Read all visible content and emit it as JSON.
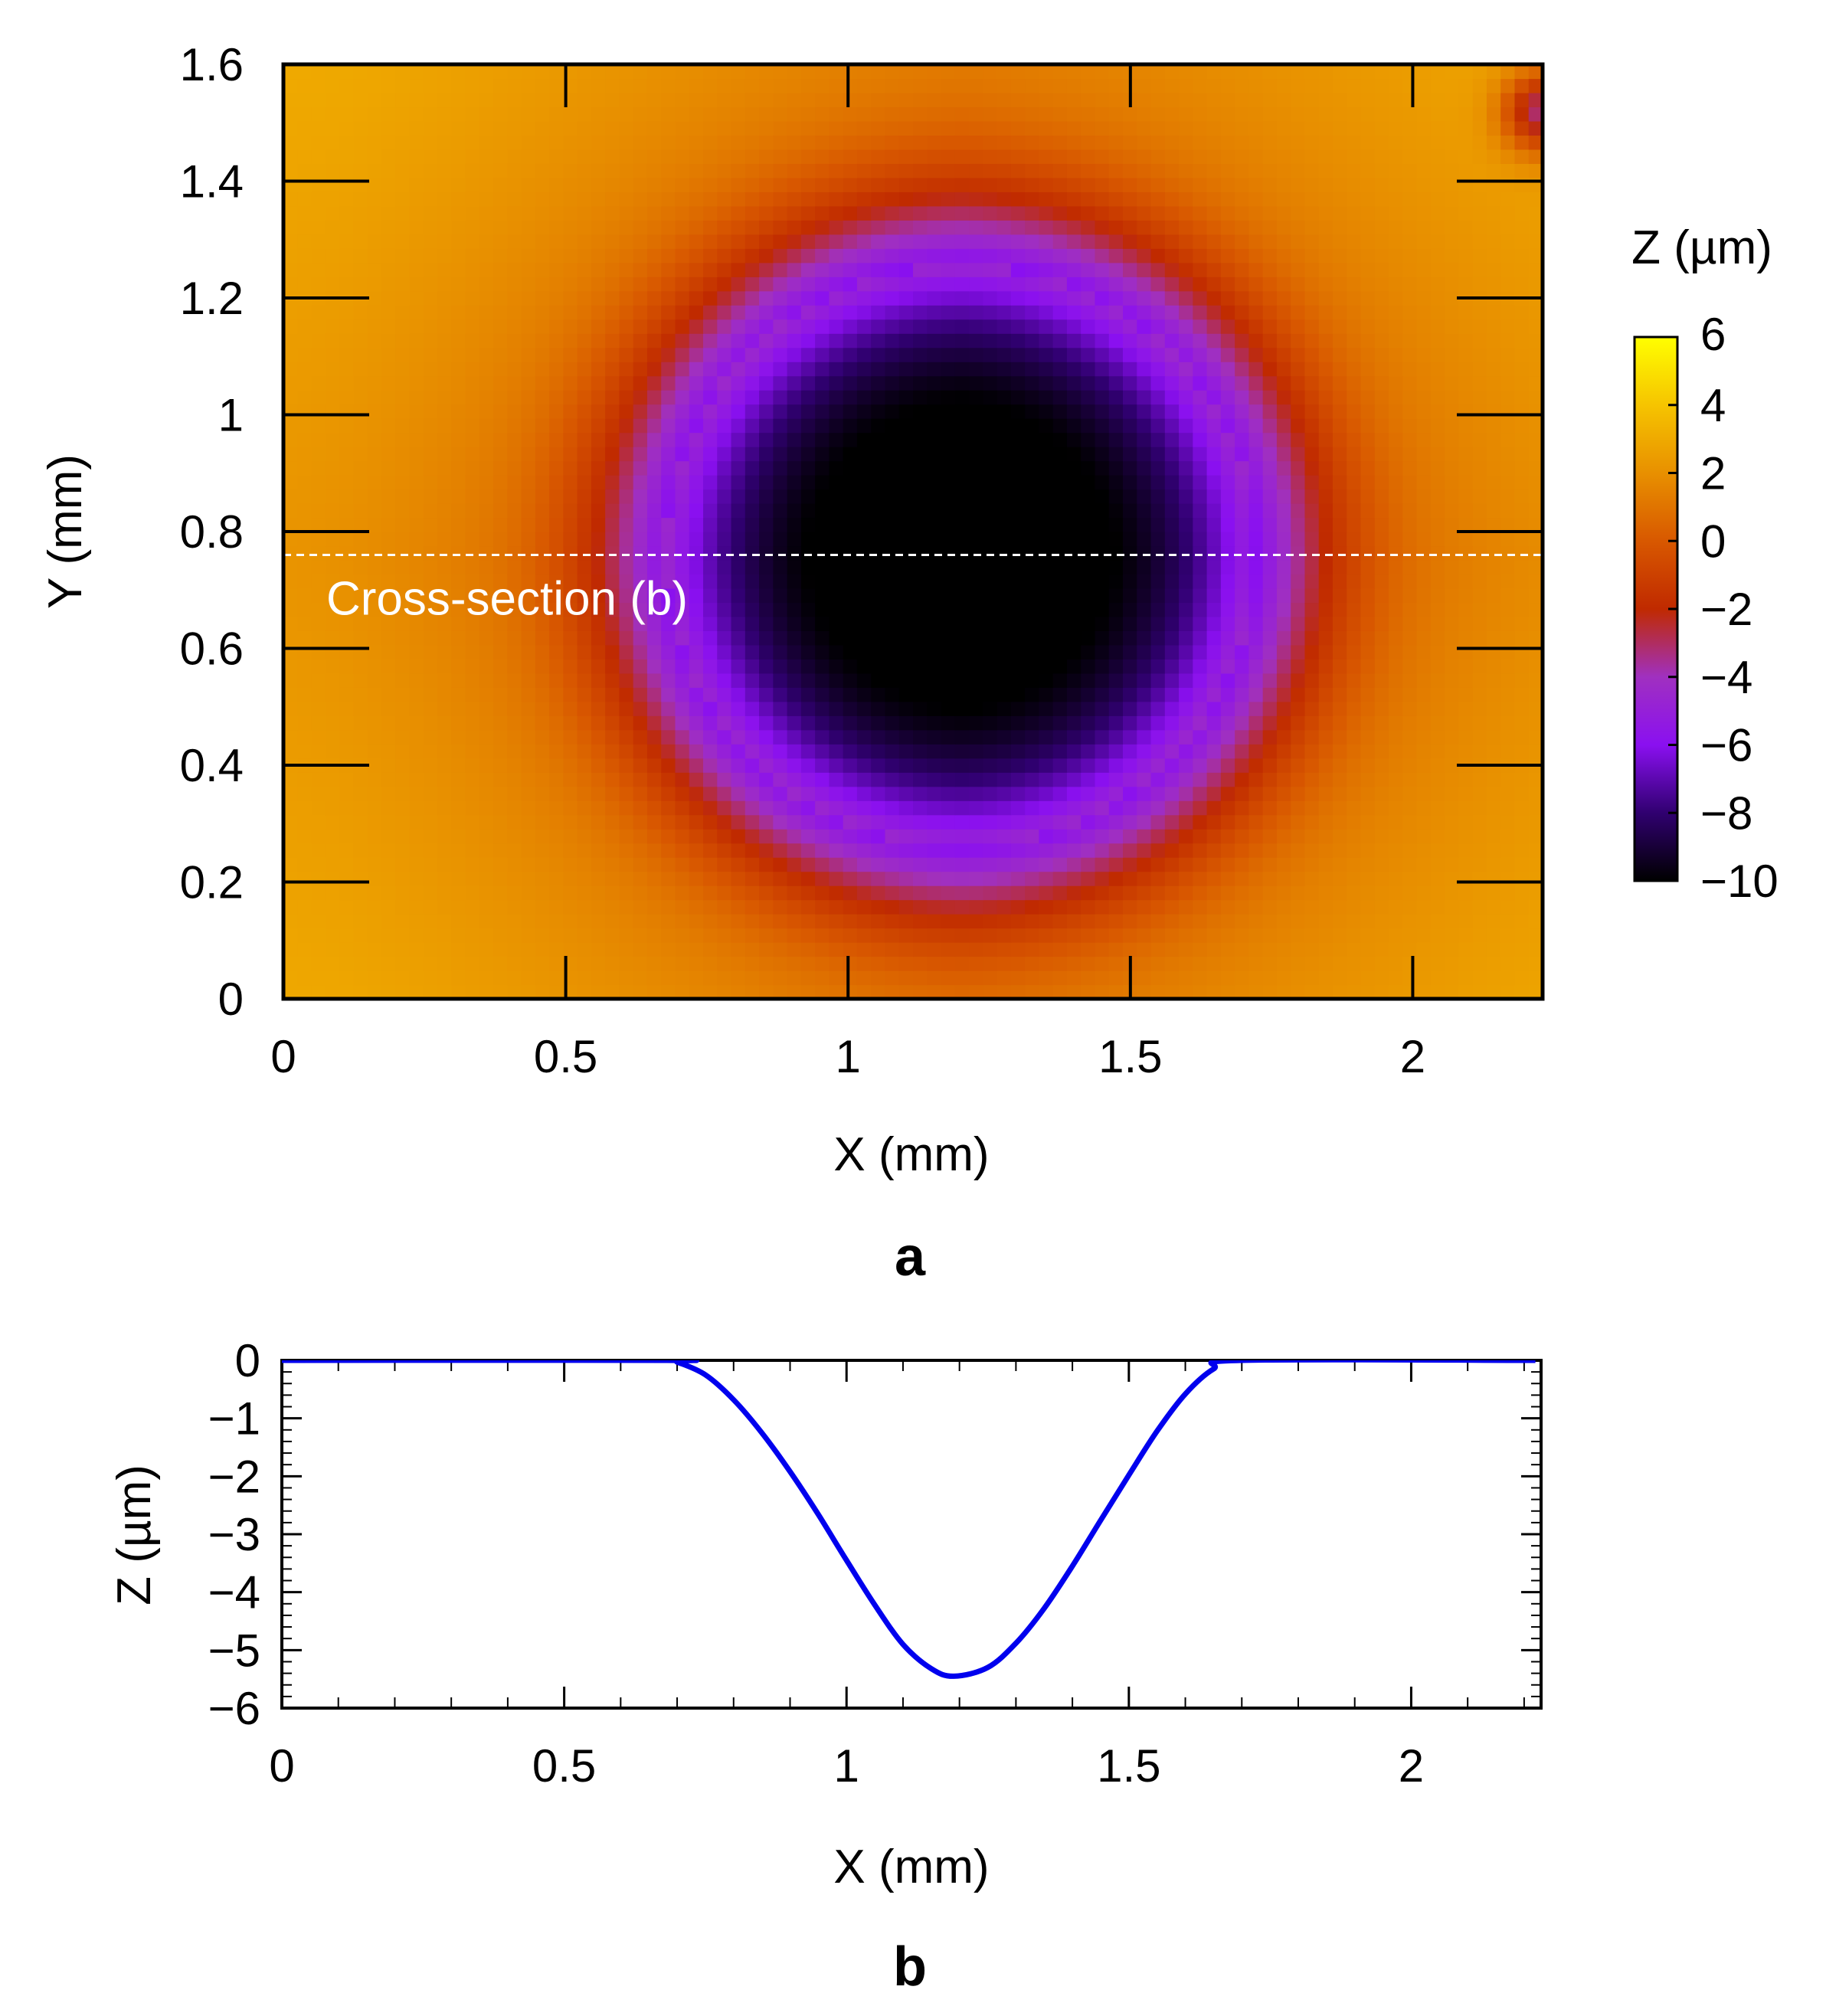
{
  "chart_data": [
    {
      "panel": "a",
      "type": "heatmap",
      "panel_label": "a",
      "xlabel": "X (mm)",
      "ylabel": "Y (mm)",
      "xlim": [
        0,
        2.23
      ],
      "ylim": [
        0,
        1.6
      ],
      "xticks": [
        0,
        0.5,
        1,
        1.5,
        2
      ],
      "xtick_labels": [
        "0",
        "0.5",
        "1",
        "1.5",
        "2"
      ],
      "yticks": [
        0,
        0.2,
        0.4,
        0.6,
        0.8,
        1,
        1.2,
        1.4,
        1.6
      ],
      "ytick_labels": [
        "0",
        "0.2",
        "0.4",
        "0.6",
        "0.8",
        "1",
        "1.2",
        "1.4",
        "1.6"
      ],
      "annotation": "Cross-section (b)",
      "cross_section_y": 0.76,
      "surface": {
        "baseline": 2,
        "background_gradient_um": 1.5,
        "dimple": {
          "center_x": 1.2,
          "center_y": 0.76,
          "radius": 0.58,
          "depth": 11.5
        },
        "edge_defect": {
          "x": 2.23,
          "y": 1.52,
          "depth": 6
        }
      },
      "colorbar": {
        "label": "Z (µm)",
        "range": [
          -10,
          6
        ],
        "ticks": [
          6,
          4,
          2,
          0,
          -2,
          -4,
          -6,
          -8,
          -10
        ],
        "tick_labels": [
          "6",
          "4",
          "2",
          "0",
          "−2",
          "−4",
          "−6",
          "−8",
          "−10"
        ],
        "colors": [
          "#000000",
          "#300070",
          "#8a10f0",
          "#a030c0",
          "#c02a00",
          "#d85800",
          "#e89000",
          "#f6c400",
          "#ffff00"
        ]
      }
    },
    {
      "panel": "b",
      "type": "line",
      "panel_label": "b",
      "xlabel": "X (mm)",
      "ylabel": "Z (µm)",
      "xlim": [
        0,
        2.23
      ],
      "ylim": [
        -6,
        0
      ],
      "xticks": [
        0,
        0.5,
        1,
        1.5,
        2
      ],
      "xtick_labels": [
        "0",
        "0.5",
        "1",
        "1.5",
        "2"
      ],
      "yticks": [
        0,
        -1,
        -2,
        -3,
        -4,
        -5,
        -6
      ],
      "ytick_labels": [
        "0",
        "−1",
        "−2",
        "−3",
        "−4",
        "−5",
        "−6"
      ],
      "series": [
        {
          "name": "cross-section",
          "color": "#0000ee",
          "x": [
            0,
            0.68,
            0.7,
            0.75,
            0.8,
            0.85,
            0.9,
            0.95,
            1.0,
            1.05,
            1.1,
            1.15,
            1.19,
            1.25,
            1.3,
            1.35,
            1.4,
            1.45,
            1.5,
            1.55,
            1.6,
            1.65,
            1.7,
            2.22
          ],
          "y": [
            0,
            0,
            -0.03,
            -0.25,
            -0.68,
            -1.25,
            -1.92,
            -2.66,
            -3.45,
            -4.22,
            -4.9,
            -5.32,
            -5.45,
            -5.3,
            -4.88,
            -4.28,
            -3.55,
            -2.76,
            -1.98,
            -1.22,
            -0.58,
            -0.15,
            0,
            0
          ]
        }
      ]
    }
  ]
}
